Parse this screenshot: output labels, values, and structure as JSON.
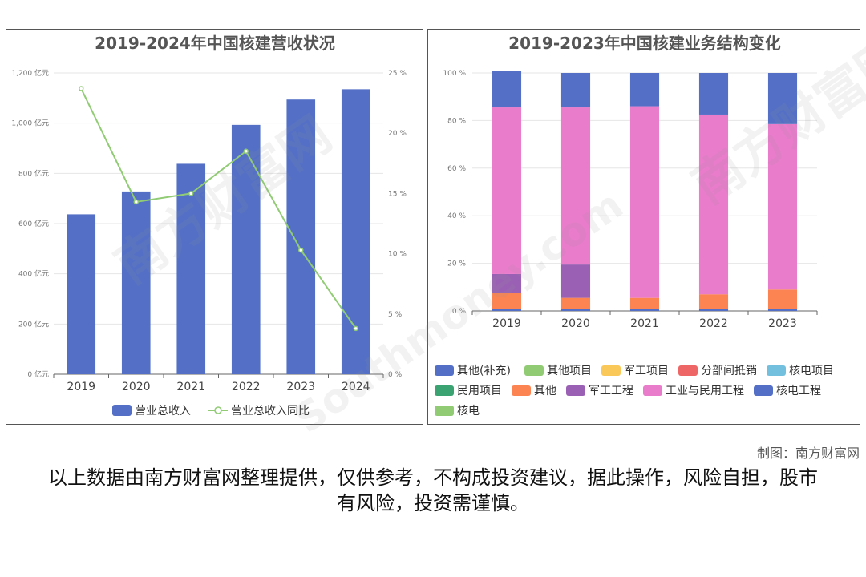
{
  "credit": "制图：南方财富网",
  "disclaimer": "以上数据由南方财富网整理提供，仅供参考，不构成投资建议，据此操作，风险自担，股市有风险，投资需谨慎。",
  "watermark": {
    "cn": "南方财富网",
    "en": "Southmoney.com"
  },
  "chart_data": [
    {
      "type": "bar",
      "title": "2019-2024年中国核建营收状况",
      "categories": [
        "2019",
        "2020",
        "2021",
        "2022",
        "2023",
        "2024"
      ],
      "series": [
        {
          "name": "营业总收入",
          "type": "bar",
          "axis": "left",
          "values": [
            637,
            728,
            838,
            993,
            1094,
            1135
          ],
          "color": "#5470c6"
        },
        {
          "name": "营业总收入同比",
          "type": "line",
          "axis": "right",
          "values": [
            23.7,
            14.3,
            15.0,
            18.5,
            10.3,
            3.8
          ],
          "color": "#91cc75"
        }
      ],
      "y_left": {
        "ylim": [
          0,
          1200
        ],
        "ticks": [
          0,
          200,
          400,
          600,
          800,
          1000,
          1200
        ],
        "tick_labels": [
          "0 亿元",
          "200 亿元",
          "400 亿元",
          "600 亿元",
          "800 亿元",
          "1,000 亿元",
          "1,200 亿元"
        ]
      },
      "y_right": {
        "ylim": [
          0,
          25
        ],
        "ticks": [
          0,
          5,
          10,
          15,
          20,
          25
        ],
        "tick_labels": [
          "0 %",
          "5 %",
          "10 %",
          "15 %",
          "20 %",
          "25 %"
        ]
      },
      "grid": true,
      "legend": "bottom"
    },
    {
      "type": "bar",
      "stacked": true,
      "title": "2019-2023年中国核建业务结构变化",
      "categories": [
        "2019",
        "2020",
        "2021",
        "2022",
        "2023"
      ],
      "y": {
        "ylim": [
          0,
          100
        ],
        "ticks": [
          0,
          20,
          40,
          60,
          80,
          100
        ],
        "tick_labels": [
          "0 %",
          "20 %",
          "40 %",
          "60 %",
          "80 %",
          "100 %"
        ]
      },
      "series": [
        {
          "name": "其他(补充)",
          "values": [
            0,
            0,
            0,
            0,
            0
          ],
          "color": "#5470c6"
        },
        {
          "name": "其他项目",
          "values": [
            0,
            0,
            0,
            0,
            0
          ],
          "color": "#91cc75"
        },
        {
          "name": "军工项目",
          "values": [
            0,
            0,
            0,
            0,
            0
          ],
          "color": "#fac858"
        },
        {
          "name": "分部间抵销",
          "values": [
            0,
            0,
            0,
            0,
            0
          ],
          "color": "#ee6666"
        },
        {
          "name": "核电项目",
          "values": [
            0,
            0,
            0,
            0,
            0
          ],
          "color": "#73c0de"
        },
        {
          "name": "民用项目",
          "values": [
            0,
            0,
            0,
            0,
            0
          ],
          "color": "#3ba272"
        },
        {
          "name": "其他",
          "values": [
            6.5,
            4.5,
            4.5,
            6,
            8
          ],
          "color": "#fc8452"
        },
        {
          "name": "军工工程",
          "values": [
            8,
            14,
            0,
            0,
            0
          ],
          "color": "#9a60b4"
        },
        {
          "name": "工业与民用工程",
          "values": [
            70,
            66,
            80.5,
            75.5,
            69.5
          ],
          "color": "#ea7ccc"
        },
        {
          "name": "核电工程",
          "values": [
            15.5,
            14.5,
            14,
            17.5,
            21.5
          ],
          "color": "#5470c6"
        },
        {
          "name": "核电",
          "values": [
            0,
            0,
            0,
            0,
            0
          ],
          "color": "#91cc75"
        }
      ],
      "base_segment": {
        "values": [
          1,
          1,
          1,
          1,
          1
        ],
        "color": "#5470c6"
      },
      "grid": true,
      "legend": "bottom"
    }
  ]
}
